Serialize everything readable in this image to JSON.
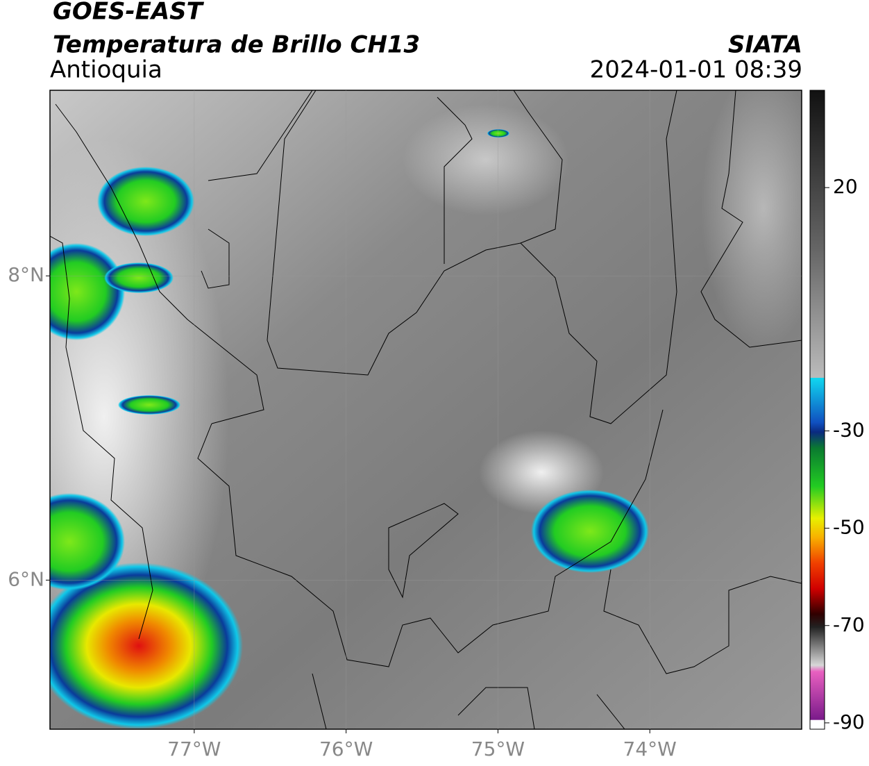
{
  "header": {
    "title": "GOES-EAST",
    "subtitle": "Temperatura de Brillo CH13",
    "region": "Antioquia",
    "source": "SIATA",
    "datetime": "2024-01-01 08:39"
  },
  "map": {
    "xlim": [
      -77.95,
      -73.0
    ],
    "ylim": [
      5.02,
      9.22
    ],
    "xticks": [
      {
        "value": -77,
        "label": "77°W"
      },
      {
        "value": -76,
        "label": "76°W"
      },
      {
        "value": -75,
        "label": "75°W"
      },
      {
        "value": -74,
        "label": "74°W"
      }
    ],
    "yticks": [
      {
        "value": 8,
        "label": "8°N"
      },
      {
        "value": 6,
        "label": "6°N"
      }
    ],
    "grid": true
  },
  "colorbar": {
    "clim": [
      -91.3,
      40
    ],
    "ticks": [
      20,
      -30,
      -50,
      -70,
      -90
    ]
  }
}
